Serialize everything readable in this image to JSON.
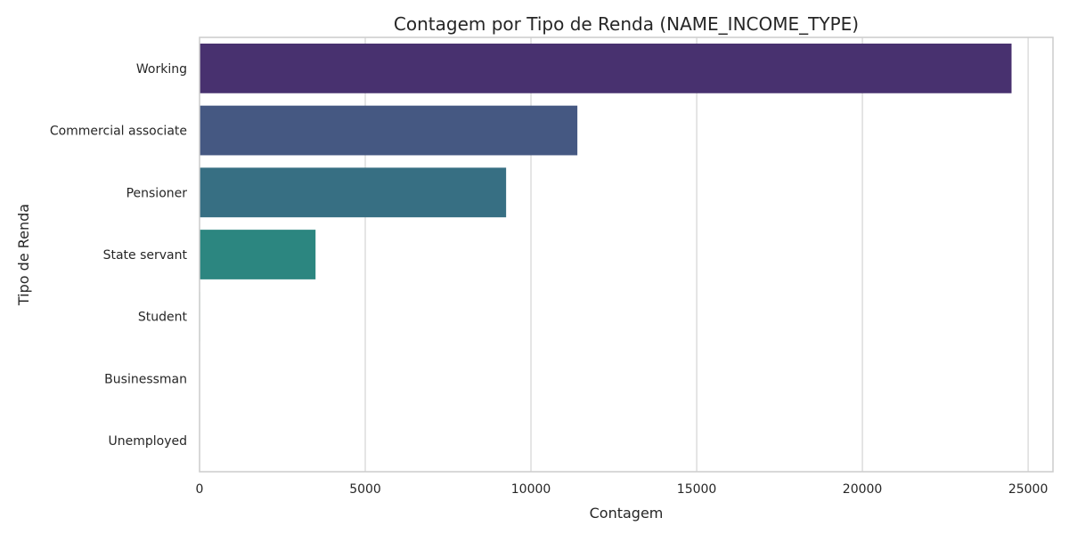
{
  "chart_data": {
    "type": "bar",
    "orientation": "horizontal",
    "title": "Contagem por Tipo de Renda (NAME_INCOME_TYPE)",
    "xlabel": "Contagem",
    "ylabel": "Tipo de Renda",
    "xlim": [
      0,
      25750
    ],
    "xticks": [
      0,
      5000,
      10000,
      15000,
      20000,
      25000
    ],
    "grid": "vertical",
    "categories": [
      "Working",
      "Commercial associate",
      "Pensioner",
      "State servant",
      "Student",
      "Businessman",
      "Unemployed"
    ],
    "values": [
      24500,
      11400,
      9250,
      3500,
      15,
      10,
      5
    ],
    "colors": [
      "#48316f",
      "#455882",
      "#376f83",
      "#2c8680",
      "#2ea67a",
      "#53c265",
      "#9bd243"
    ]
  }
}
